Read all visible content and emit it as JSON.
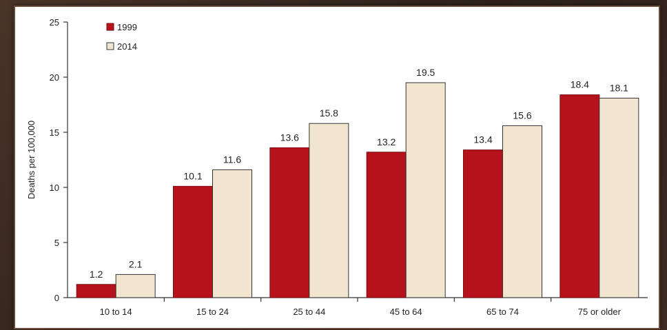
{
  "chart_data": {
    "type": "bar",
    "ylabel": "Deaths per 100,000",
    "ylim": [
      0,
      25
    ],
    "yticks": [
      0,
      5,
      10,
      15,
      20,
      25
    ],
    "categories": [
      "10 to 14",
      "15 to 24",
      "25 to 44",
      "45 to 64",
      "65 to 74",
      "75 or older"
    ],
    "series": [
      {
        "name": "1999",
        "color": "#b5121b",
        "values": [
          1.2,
          10.1,
          13.6,
          13.2,
          13.4,
          18.4
        ],
        "labels": [
          "1.2",
          "10.1",
          "13.6",
          "13.2",
          "13.4",
          "18.4"
        ]
      },
      {
        "name": "2014",
        "color": "#f1e5cf",
        "values": [
          2.1,
          11.6,
          15.8,
          19.5,
          15.6,
          18.1
        ],
        "labels": [
          "2.1",
          "11.6",
          "15.8",
          "19.5",
          "15.6",
          "18.1"
        ]
      }
    ],
    "legend_position": "top-left",
    "grid": false
  }
}
